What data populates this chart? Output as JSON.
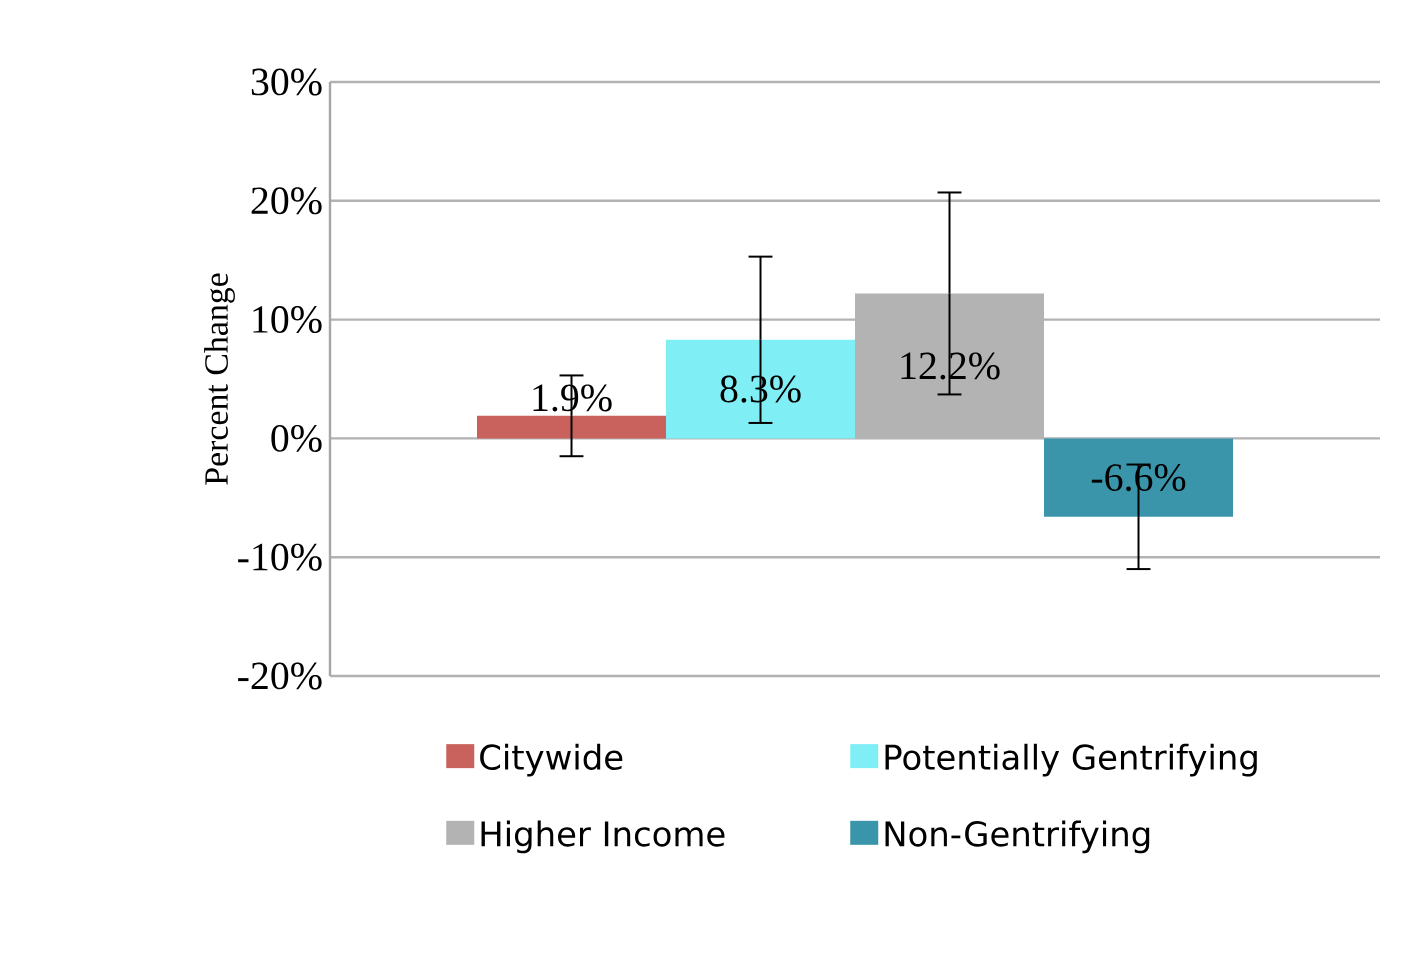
{
  "chart_data": {
    "type": "bar",
    "ylabel": "Percent Change",
    "categories": [
      null
    ],
    "series": [
      {
        "name": "Citywide",
        "color": "#c9625c",
        "values": [
          1.9
        ],
        "errors": [
          3.4
        ],
        "value_labels": [
          "1.9%"
        ]
      },
      {
        "name": "Potentially Gentrifying",
        "color": "#80eef5",
        "values": [
          8.3
        ],
        "errors": [
          7.0
        ],
        "value_labels": [
          "8.3%"
        ]
      },
      {
        "name": "Higher Income",
        "color": "#b3b3b3",
        "values": [
          12.2
        ],
        "errors": [
          8.5
        ],
        "value_labels": [
          "12.2%"
        ]
      },
      {
        "name": "Non-Gentrifying",
        "color": "#3a95ab",
        "values": [
          -6.6
        ],
        "errors": [
          4.4
        ],
        "value_labels": [
          "-6.6%"
        ]
      }
    ],
    "ylim": [
      -20,
      30
    ],
    "yticks": [
      {
        "value": -20,
        "label": "-20%"
      },
      {
        "value": -10,
        "label": "-10%"
      },
      {
        "value": 0,
        "label": "0%"
      },
      {
        "value": 10,
        "label": "10%"
      },
      {
        "value": 20,
        "label": "20%"
      },
      {
        "value": 30,
        "label": "30%"
      }
    ],
    "grid": "y",
    "legend": "bottom"
  }
}
